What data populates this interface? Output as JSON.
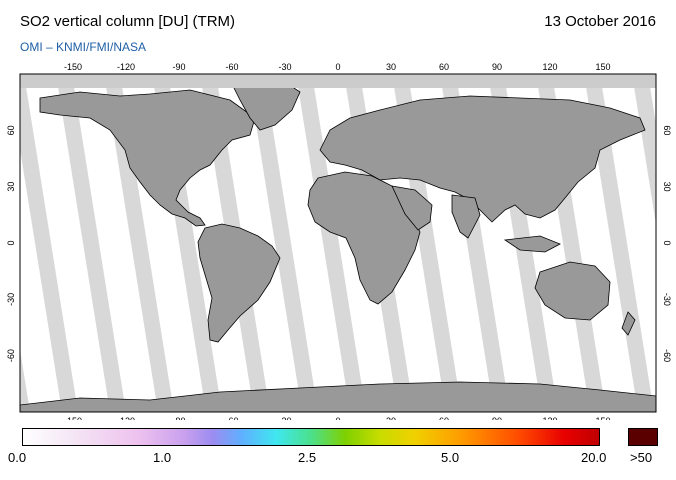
{
  "header": {
    "title": "SO2 vertical column [DU] (TRM)",
    "date": "13 October 2016",
    "source": "OMI  –  KNMI/FMI/NASA"
  },
  "map": {
    "lon_ticks": [
      "-150",
      "-120",
      "-90",
      "-60",
      "-30",
      "0",
      "30",
      "60",
      "90",
      "120",
      "150"
    ],
    "lat_ticks": [
      "60",
      "30",
      "0",
      "-30",
      "-60"
    ],
    "colors": {
      "land": "#999999",
      "water": "#ffffff",
      "no_data": "#cccccc",
      "coast": "#000000"
    }
  },
  "colorbar": {
    "labels": [
      "0.0",
      "1.0",
      "2.5",
      "5.0",
      "20.0"
    ],
    "over_label": ">50",
    "over_color": "#5a0000"
  }
}
